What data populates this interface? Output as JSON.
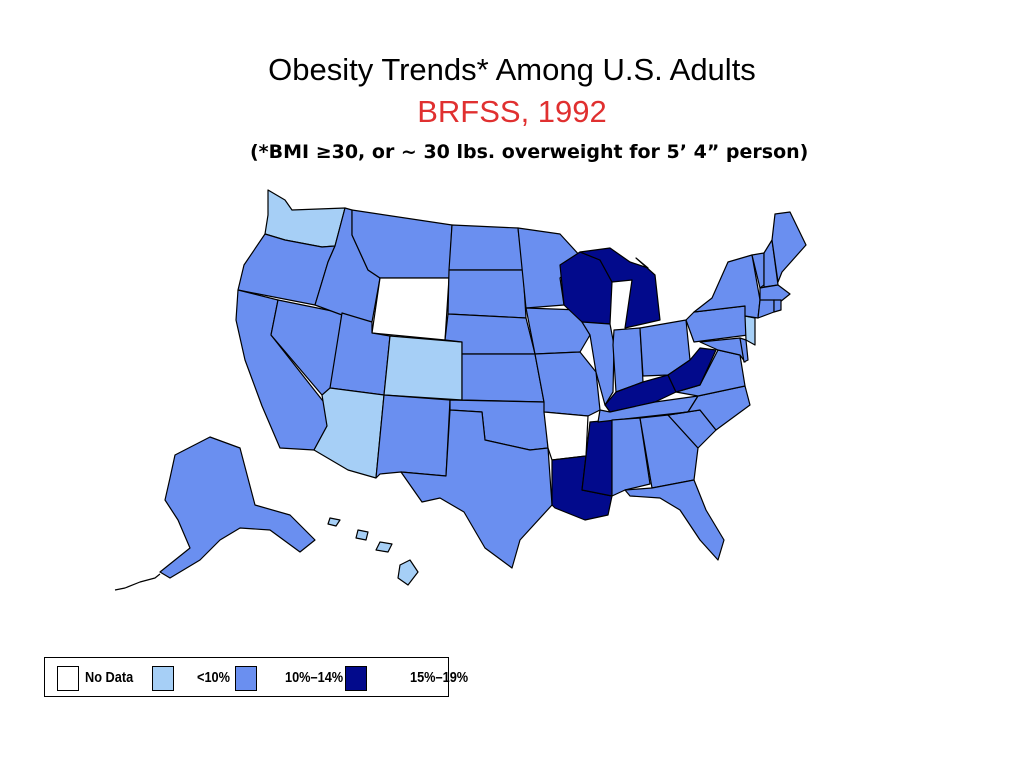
{
  "title": "Obesity Trends* Among U.S. Adults",
  "subtitle": "BRFSS, 1992",
  "note": "(*BMI ≥30, or ~ 30 lbs. overweight for 5’ 4” person)",
  "colors": {
    "no_data": "#ffffff",
    "lt10": "#a6cff6",
    "p10_14": "#6a8ff0",
    "p15_19": "#020a8c",
    "title_accent": "#e03030"
  },
  "legend": [
    {
      "label": "No Data",
      "color_key": "no_data"
    },
    {
      "label": "<10%",
      "color_key": "lt10"
    },
    {
      "label": "10%–14%",
      "color_key": "p10_14"
    },
    {
      "label": "15%–19%",
      "color_key": "p15_19"
    }
  ],
  "state_categories": {
    "no_data": [
      "Wyoming",
      "Arkansas"
    ],
    "lt10": [
      "Washington",
      "Colorado",
      "Arizona",
      "New Jersey",
      "Hawaii"
    ],
    "p10_14": [
      "Oregon",
      "California",
      "Nevada",
      "Idaho",
      "Montana",
      "Utah",
      "New Mexico",
      "North Dakota",
      "South Dakota",
      "Nebraska",
      "Kansas",
      "Oklahoma",
      "Texas",
      "Minnesota",
      "Iowa",
      "Missouri",
      "Illinois",
      "Indiana",
      "Ohio",
      "Tennessee",
      "Alabama",
      "Georgia",
      "Florida",
      "South Carolina",
      "North Carolina",
      "Virginia",
      "Maryland",
      "Delaware",
      "Pennsylvania",
      "New York",
      "Vermont",
      "New Hampshire",
      "Maine",
      "Massachusetts",
      "Connecticut",
      "Rhode Island",
      "Alaska"
    ],
    "p15_19": [
      "Wisconsin",
      "Michigan",
      "Kentucky",
      "West Virginia",
      "Mississippi",
      "Louisiana"
    ]
  }
}
